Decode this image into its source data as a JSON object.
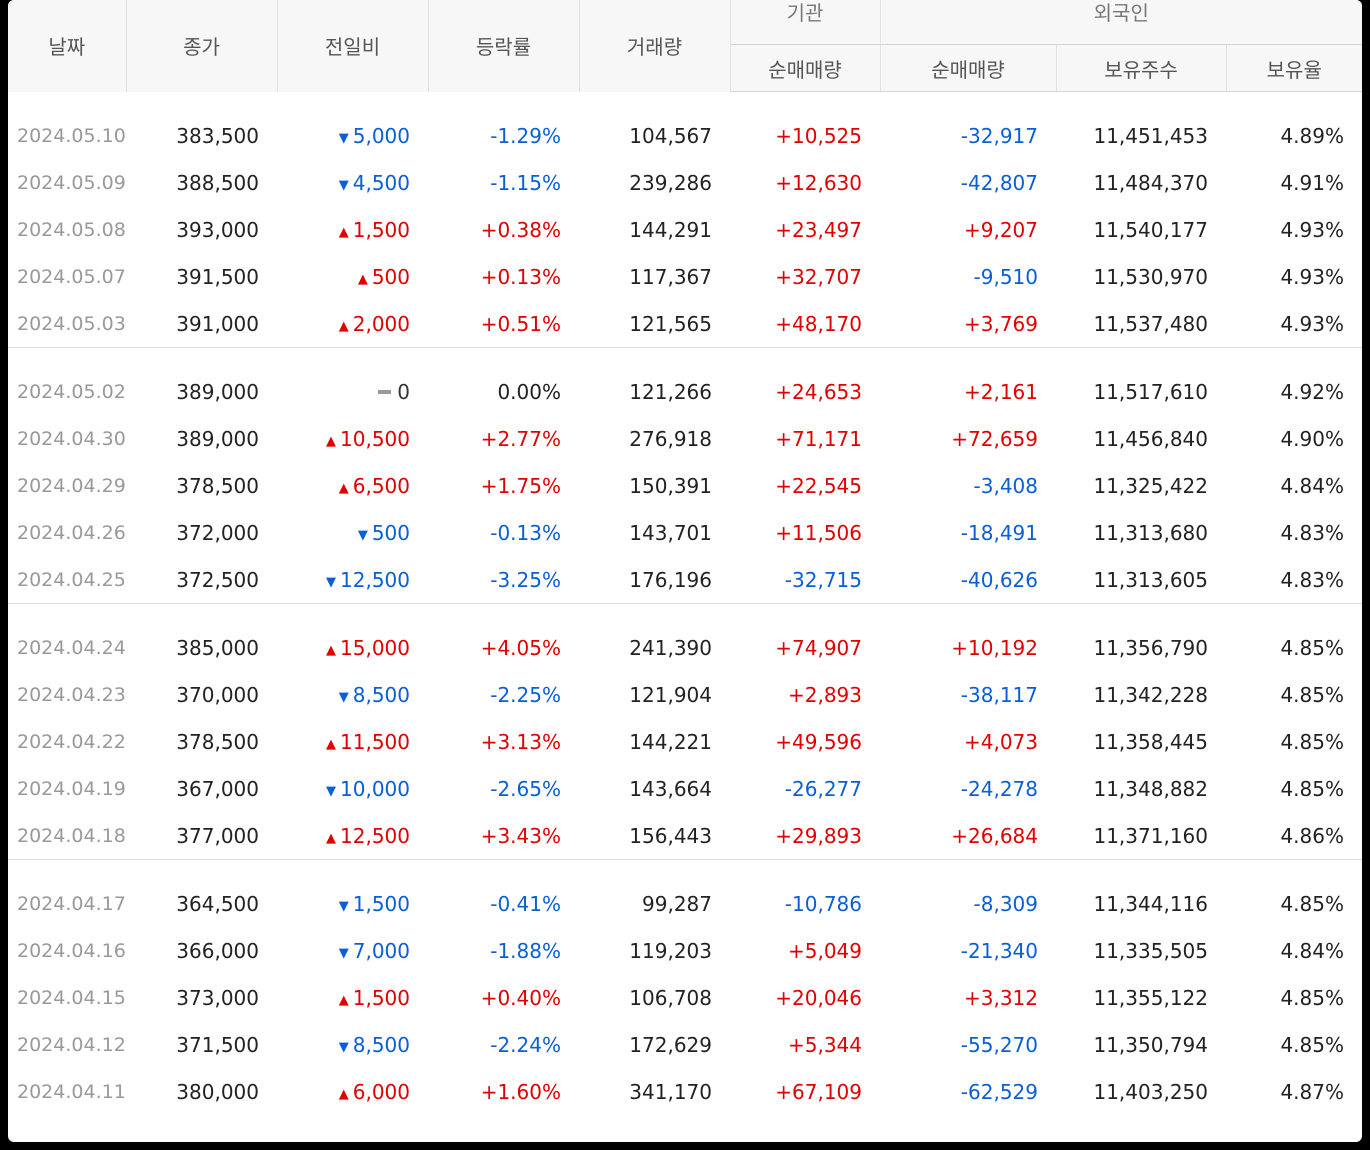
{
  "headers": {
    "date": "날짜",
    "close": "종가",
    "change": "전일비",
    "rate": "등락률",
    "volume": "거래량",
    "institution_group": "기관",
    "institution_net": "순매매량",
    "foreign_group": "외국인",
    "foreign_net": "순매매량",
    "foreign_shares": "보유주수",
    "foreign_ratio": "보유율"
  },
  "colors": {
    "up": "#e00000",
    "down": "#0a5ed7"
  },
  "groups": [
    [
      {
        "date": "2024.05.10",
        "close": "383,500",
        "dir": "down",
        "change": "5,000",
        "rate": "-1.29%",
        "volume": "104,567",
        "inst": "+10,525",
        "foreign": "-32,917",
        "shares": "11,451,453",
        "ratio": "4.89%"
      },
      {
        "date": "2024.05.09",
        "close": "388,500",
        "dir": "down",
        "change": "4,500",
        "rate": "-1.15%",
        "volume": "239,286",
        "inst": "+12,630",
        "foreign": "-42,807",
        "shares": "11,484,370",
        "ratio": "4.91%"
      },
      {
        "date": "2024.05.08",
        "close": "393,000",
        "dir": "up",
        "change": "1,500",
        "rate": "+0.38%",
        "volume": "144,291",
        "inst": "+23,497",
        "foreign": "+9,207",
        "shares": "11,540,177",
        "ratio": "4.93%"
      },
      {
        "date": "2024.05.07",
        "close": "391,500",
        "dir": "up",
        "change": "500",
        "rate": "+0.13%",
        "volume": "117,367",
        "inst": "+32,707",
        "foreign": "-9,510",
        "shares": "11,530,970",
        "ratio": "4.93%"
      },
      {
        "date": "2024.05.03",
        "close": "391,000",
        "dir": "up",
        "change": "2,000",
        "rate": "+0.51%",
        "volume": "121,565",
        "inst": "+48,170",
        "foreign": "+3,769",
        "shares": "11,537,480",
        "ratio": "4.93%"
      }
    ],
    [
      {
        "date": "2024.05.02",
        "close": "389,000",
        "dir": "flat",
        "change": "0",
        "rate": "0.00%",
        "volume": "121,266",
        "inst": "+24,653",
        "foreign": "+2,161",
        "shares": "11,517,610",
        "ratio": "4.92%"
      },
      {
        "date": "2024.04.30",
        "close": "389,000",
        "dir": "up",
        "change": "10,500",
        "rate": "+2.77%",
        "volume": "276,918",
        "inst": "+71,171",
        "foreign": "+72,659",
        "shares": "11,456,840",
        "ratio": "4.90%"
      },
      {
        "date": "2024.04.29",
        "close": "378,500",
        "dir": "up",
        "change": "6,500",
        "rate": "+1.75%",
        "volume": "150,391",
        "inst": "+22,545",
        "foreign": "-3,408",
        "shares": "11,325,422",
        "ratio": "4.84%"
      },
      {
        "date": "2024.04.26",
        "close": "372,000",
        "dir": "down",
        "change": "500",
        "rate": "-0.13%",
        "volume": "143,701",
        "inst": "+11,506",
        "foreign": "-18,491",
        "shares": "11,313,680",
        "ratio": "4.83%"
      },
      {
        "date": "2024.04.25",
        "close": "372,500",
        "dir": "down",
        "change": "12,500",
        "rate": "-3.25%",
        "volume": "176,196",
        "inst": "-32,715",
        "foreign": "-40,626",
        "shares": "11,313,605",
        "ratio": "4.83%"
      }
    ],
    [
      {
        "date": "2024.04.24",
        "close": "385,000",
        "dir": "up",
        "change": "15,000",
        "rate": "+4.05%",
        "volume": "241,390",
        "inst": "+74,907",
        "foreign": "+10,192",
        "shares": "11,356,790",
        "ratio": "4.85%"
      },
      {
        "date": "2024.04.23",
        "close": "370,000",
        "dir": "down",
        "change": "8,500",
        "rate": "-2.25%",
        "volume": "121,904",
        "inst": "+2,893",
        "foreign": "-38,117",
        "shares": "11,342,228",
        "ratio": "4.85%"
      },
      {
        "date": "2024.04.22",
        "close": "378,500",
        "dir": "up",
        "change": "11,500",
        "rate": "+3.13%",
        "volume": "144,221",
        "inst": "+49,596",
        "foreign": "+4,073",
        "shares": "11,358,445",
        "ratio": "4.85%"
      },
      {
        "date": "2024.04.19",
        "close": "367,000",
        "dir": "down",
        "change": "10,000",
        "rate": "-2.65%",
        "volume": "143,664",
        "inst": "-26,277",
        "foreign": "-24,278",
        "shares": "11,348,882",
        "ratio": "4.85%"
      },
      {
        "date": "2024.04.18",
        "close": "377,000",
        "dir": "up",
        "change": "12,500",
        "rate": "+3.43%",
        "volume": "156,443",
        "inst": "+29,893",
        "foreign": "+26,684",
        "shares": "11,371,160",
        "ratio": "4.86%"
      }
    ],
    [
      {
        "date": "2024.04.17",
        "close": "364,500",
        "dir": "down",
        "change": "1,500",
        "rate": "-0.41%",
        "volume": "99,287",
        "inst": "-10,786",
        "foreign": "-8,309",
        "shares": "11,344,116",
        "ratio": "4.85%"
      },
      {
        "date": "2024.04.16",
        "close": "366,000",
        "dir": "down",
        "change": "7,000",
        "rate": "-1.88%",
        "volume": "119,203",
        "inst": "+5,049",
        "foreign": "-21,340",
        "shares": "11,335,505",
        "ratio": "4.84%"
      },
      {
        "date": "2024.04.15",
        "close": "373,000",
        "dir": "up",
        "change": "1,500",
        "rate": "+0.40%",
        "volume": "106,708",
        "inst": "+20,046",
        "foreign": "+3,312",
        "shares": "11,355,122",
        "ratio": "4.85%"
      },
      {
        "date": "2024.04.12",
        "close": "371,500",
        "dir": "down",
        "change": "8,500",
        "rate": "-2.24%",
        "volume": "172,629",
        "inst": "+5,344",
        "foreign": "-55,270",
        "shares": "11,350,794",
        "ratio": "4.85%"
      },
      {
        "date": "2024.04.11",
        "close": "380,000",
        "dir": "up",
        "change": "6,000",
        "rate": "+1.60%",
        "volume": "341,170",
        "inst": "+67,109",
        "foreign": "-62,529",
        "shares": "11,403,250",
        "ratio": "4.87%"
      }
    ]
  ]
}
